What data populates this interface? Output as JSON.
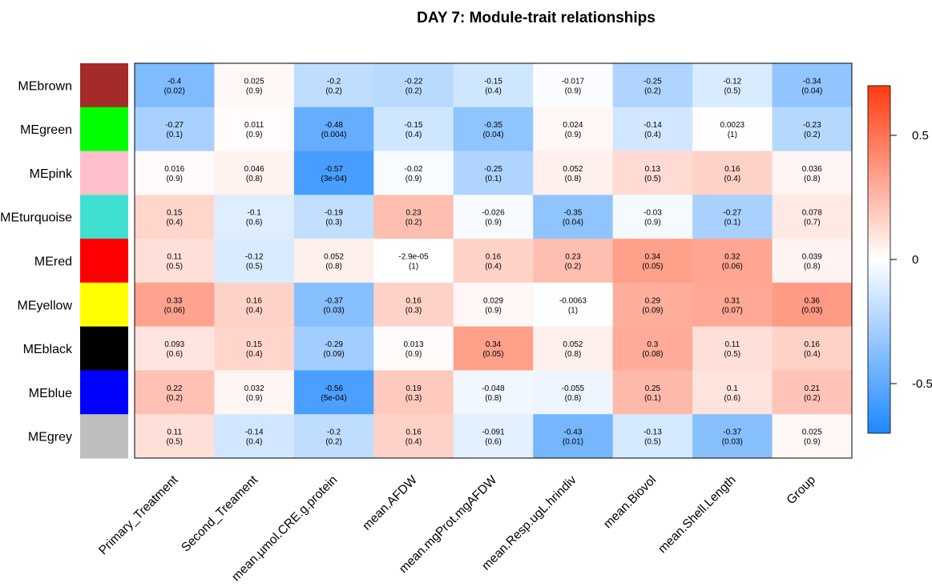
{
  "chart_data": {
    "type": "heatmap",
    "title": "DAY 7: Module-trait relationships",
    "rows": [
      "MEbrown",
      "MEgreen",
      "MEpink",
      "MEturquoise",
      "MEred",
      "MEyellow",
      "MEblack",
      "MEblue",
      "MEgrey"
    ],
    "row_colors": [
      "#a52a2a",
      "#00ff00",
      "#ffc0cb",
      "#40e0d0",
      "#ff0000",
      "#ffff00",
      "#000000",
      "#0000ff",
      "#bebebe"
    ],
    "columns": [
      "Primary_Treatment",
      "Second_Treament",
      "mean.µmol.CRE.g.protein",
      "mean.AFDW",
      "mean.mgProt.mgAFDW",
      "mean.Resp.ugL.hrindiv",
      "mean.Biovol",
      "mean.Shell.Length",
      "Group"
    ],
    "values": [
      [
        -0.4,
        0.025,
        -0.2,
        -0.22,
        -0.15,
        -0.017,
        -0.25,
        -0.12,
        -0.34
      ],
      [
        -0.27,
        0.011,
        -0.48,
        -0.15,
        -0.35,
        0.024,
        -0.14,
        0.0023,
        -0.23
      ],
      [
        0.016,
        0.046,
        -0.57,
        -0.02,
        -0.25,
        0.052,
        0.13,
        0.16,
        0.036
      ],
      [
        0.15,
        -0.1,
        -0.19,
        0.23,
        -0.026,
        -0.35,
        -0.03,
        -0.27,
        0.078
      ],
      [
        0.11,
        -0.12,
        0.052,
        -2.9e-05,
        0.16,
        0.23,
        0.34,
        0.32,
        0.039
      ],
      [
        0.33,
        0.16,
        -0.37,
        0.16,
        0.029,
        -0.0063,
        0.29,
        0.31,
        0.36
      ],
      [
        0.093,
        0.15,
        -0.29,
        0.013,
        0.34,
        0.052,
        0.3,
        0.11,
        0.16
      ],
      [
        0.22,
        0.032,
        -0.56,
        0.19,
        -0.048,
        -0.055,
        0.25,
        0.1,
        0.21
      ],
      [
        0.11,
        -0.14,
        -0.2,
        0.16,
        -0.091,
        -0.43,
        -0.13,
        -0.37,
        0.025
      ]
    ],
    "value_labels": [
      [
        "-0.4",
        "0.025",
        "-0.2",
        "-0.22",
        "-0.15",
        "-0.017",
        "-0.25",
        "-0.12",
        "-0.34"
      ],
      [
        "-0.27",
        "0.011",
        "-0.48",
        "-0.15",
        "-0.35",
        "0.024",
        "-0.14",
        "0.0023",
        "-0.23"
      ],
      [
        "0.016",
        "0.046",
        "-0.57",
        "-0.02",
        "-0.25",
        "0.052",
        "0.13",
        "0.16",
        "0.036"
      ],
      [
        "0.15",
        "-0.1",
        "-0.19",
        "0.23",
        "-0.026",
        "-0.35",
        "-0.03",
        "-0.27",
        "0.078"
      ],
      [
        "0.11",
        "-0.12",
        "0.052",
        "-2.9e-05",
        "0.16",
        "0.23",
        "0.34",
        "0.32",
        "0.039"
      ],
      [
        "0.33",
        "0.16",
        "-0.37",
        "0.16",
        "0.029",
        "-0.0063",
        "0.29",
        "0.31",
        "0.36"
      ],
      [
        "0.093",
        "0.15",
        "-0.29",
        "0.013",
        "0.34",
        "0.052",
        "0.3",
        "0.11",
        "0.16"
      ],
      [
        "0.22",
        "0.032",
        "-0.56",
        "0.19",
        "-0.048",
        "-0.055",
        "0.25",
        "0.1",
        "0.21"
      ],
      [
        "0.11",
        "-0.14",
        "-0.2",
        "0.16",
        "-0.091",
        "-0.43",
        "-0.13",
        "-0.37",
        "0.025"
      ]
    ],
    "pvalues": [
      [
        "(0.02)",
        "(0.9)",
        "(0.2)",
        "(0.2)",
        "(0.4)",
        "(0.9)",
        "(0.2)",
        "(0.5)",
        "(0.04)"
      ],
      [
        "(0.1)",
        "(0.9)",
        "(0.004)",
        "(0.4)",
        "(0.04)",
        "(0.9)",
        "(0.4)",
        "(1)",
        "(0.2)"
      ],
      [
        "(0.9)",
        "(0.8)",
        "(3e-04)",
        "(0.9)",
        "(0.1)",
        "(0.8)",
        "(0.5)",
        "(0.4)",
        "(0.8)"
      ],
      [
        "(0.4)",
        "(0.6)",
        "(0.3)",
        "(0.2)",
        "(0.9)",
        "(0.04)",
        "(0.9)",
        "(0.1)",
        "(0.7)"
      ],
      [
        "(0.5)",
        "(0.5)",
        "(0.8)",
        "(1)",
        "(0.4)",
        "(0.2)",
        "(0.05)",
        "(0.06)",
        "(0.8)"
      ],
      [
        "(0.06)",
        "(0.4)",
        "(0.03)",
        "(0.3)",
        "(0.9)",
        "(1)",
        "(0.09)",
        "(0.07)",
        "(0.03)"
      ],
      [
        "(0.6)",
        "(0.4)",
        "(0.09)",
        "(0.9)",
        "(0.05)",
        "(0.8)",
        "(0.08)",
        "(0.5)",
        "(0.4)"
      ],
      [
        "(0.2)",
        "(0.9)",
        "(5e-04)",
        "(0.3)",
        "(0.8)",
        "(0.8)",
        "(0.1)",
        "(0.6)",
        "(0.2)"
      ],
      [
        "(0.5)",
        "(0.4)",
        "(0.2)",
        "(0.4)",
        "(0.6)",
        "(0.01)",
        "(0.5)",
        "(0.03)",
        "(0.9)"
      ]
    ],
    "color_scale": {
      "range": [
        -0.7,
        0.7
      ],
      "low_color": "#1e88ff",
      "mid_color": "#ffffff",
      "high_color": "#ff3b10",
      "ticks": [
        0.5,
        0,
        -0.5
      ],
      "tick_labels": [
        "0.5",
        "0",
        "-0.5"
      ]
    }
  }
}
